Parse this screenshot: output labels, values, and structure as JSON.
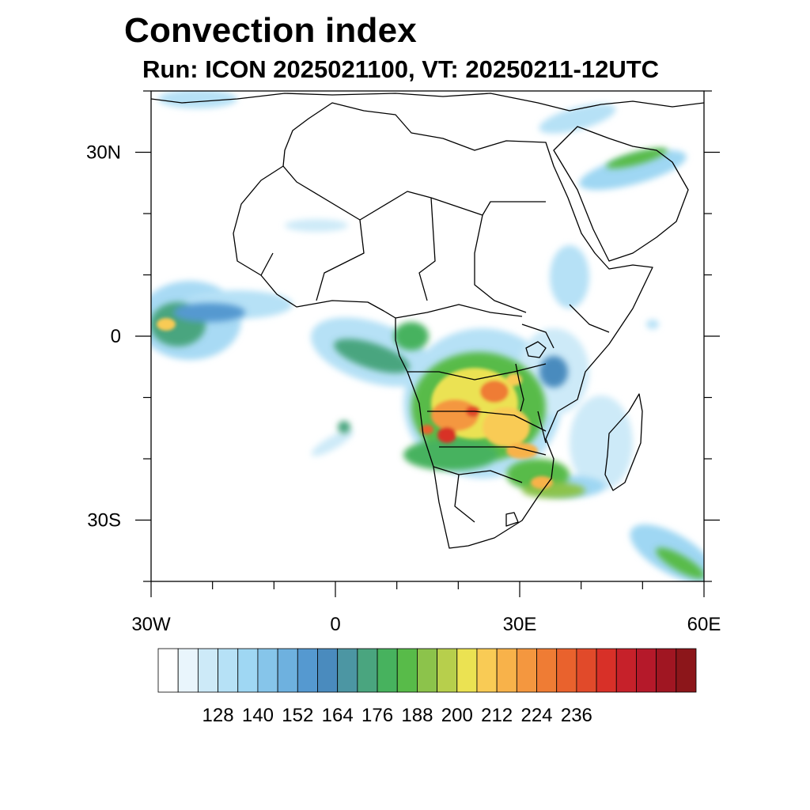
{
  "title": "Convection index",
  "subtitle": "Run: ICON 2025021100,  VT: 20250211-12UTC",
  "map": {
    "lon_range": [
      -30,
      60
    ],
    "lat_range": [
      -40,
      40
    ],
    "lat_ticks": [
      {
        "value": 30,
        "label": "30N"
      },
      {
        "value": 0,
        "label": "0"
      },
      {
        "value": -30,
        "label": "30S"
      }
    ],
    "lon_ticks": [
      {
        "value": -30,
        "label": "30W"
      },
      {
        "value": 0,
        "label": "0"
      },
      {
        "value": 30,
        "label": "30E"
      },
      {
        "value": 60,
        "label": "60E"
      }
    ],
    "coast_color": "#000000"
  },
  "colorbar": {
    "colors": [
      "#ffffff",
      "#e9f5fc",
      "#cdeaf8",
      "#b6e1f6",
      "#9fd7f3",
      "#86c5ea",
      "#6eb1df",
      "#5599d0",
      "#4a8bbe",
      "#4c96a3",
      "#4aa57f",
      "#47b25e",
      "#58bb49",
      "#8cc34b",
      "#b7cf4c",
      "#ebe252",
      "#f9cb55",
      "#f8b24a",
      "#f4973f",
      "#ef7c34",
      "#e9622d",
      "#e14a2a",
      "#d83028",
      "#c6212a",
      "#b5192a",
      "#a01622",
      "#8c161a"
    ],
    "labels": [
      "128",
      "140",
      "152",
      "164",
      "176",
      "188",
      "200",
      "212",
      "224",
      "236"
    ]
  }
}
